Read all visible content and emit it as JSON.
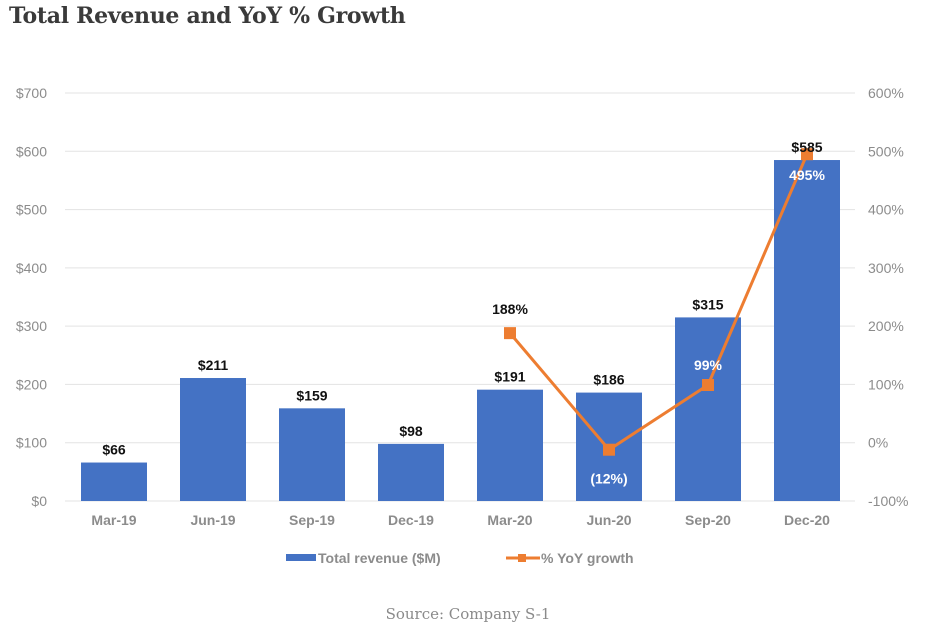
{
  "page": {
    "title": "Total Revenue and YoY % Growth",
    "source": "Source: Company S-1"
  },
  "colors": {
    "bar": "#4472c4",
    "line": "#ed7d31",
    "grid": "#e3e3e3",
    "tick_text": "#8c8c8c"
  },
  "chart_data": {
    "type": "bar",
    "title": "Total Revenue and YoY % Growth",
    "xlabel": "",
    "ylabel": "",
    "categories": [
      "Mar-19",
      "Jun-19",
      "Sep-19",
      "Dec-19",
      "Mar-20",
      "Jun-20",
      "Sep-20",
      "Dec-20"
    ],
    "series": [
      {
        "name": "Total revenue ($M)",
        "type": "bar",
        "axis": "left",
        "values": [
          66,
          211,
          159,
          98,
          191,
          186,
          315,
          585
        ],
        "labels": [
          "$66",
          "$211",
          "$159",
          "$98",
          "$191",
          "$186",
          "$315",
          "$585"
        ]
      },
      {
        "name": "% YoY growth",
        "type": "line",
        "axis": "right",
        "marker": "square",
        "values": [
          null,
          null,
          null,
          null,
          188,
          -12,
          99,
          495
        ],
        "labels": [
          null,
          null,
          null,
          null,
          "188%",
          "(12%)",
          "99%",
          "495%"
        ]
      }
    ],
    "ylim": [
      0,
      700
    ],
    "y_ticks": [
      "$0",
      "$100",
      "$200",
      "$300",
      "$400",
      "$500",
      "$600",
      "$700"
    ],
    "y_tick_values": [
      0,
      100,
      200,
      300,
      400,
      500,
      600,
      700
    ],
    "y2lim": [
      -100,
      600
    ],
    "y2_ticks": [
      "-100%",
      "0%",
      "100%",
      "200%",
      "300%",
      "400%",
      "500%",
      "600%"
    ],
    "y2_tick_values": [
      -100,
      0,
      100,
      200,
      300,
      400,
      500,
      600
    ],
    "grid": true,
    "legend": {
      "position": "bottom",
      "entries": [
        "Total revenue ($M)",
        "% YoY growth"
      ]
    }
  }
}
